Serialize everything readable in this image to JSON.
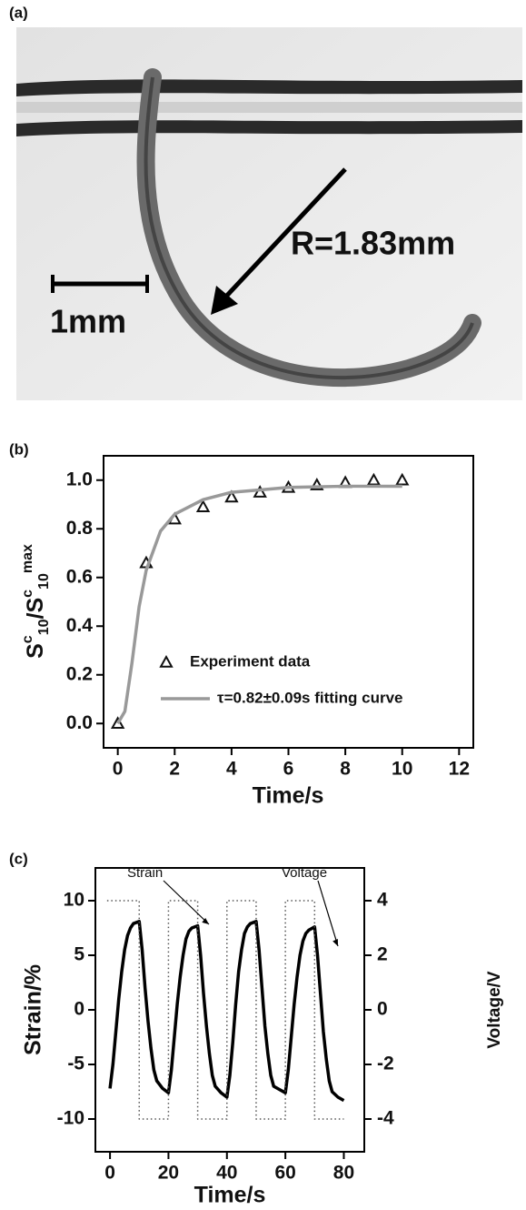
{
  "photo": {
    "label": "(a)",
    "radius_label": "R=1.83mm",
    "scale_label": "1mm"
  },
  "chart_data": [
    {
      "type": "scatter-line",
      "panel": "(b)",
      "ylabel": [
        "S",
        "c",
        "10",
        "/S",
        "c",
        "10",
        "max"
      ],
      "xlabel": "Time/s",
      "xlim": [
        -0.5,
        12.5
      ],
      "ylim": [
        -0.1,
        1.1
      ],
      "xticks": [
        0,
        2,
        4,
        6,
        8,
        10,
        12
      ],
      "yticks": [
        {
          "value": 0,
          "label": "0.0"
        },
        {
          "value": 0.2,
          "label": "0.2"
        },
        {
          "value": 0.4,
          "label": "0.4"
        },
        {
          "value": 0.6,
          "label": "0.6"
        },
        {
          "value": 0.8,
          "label": "0.8"
        },
        {
          "value": 1,
          "label": "1.0"
        }
      ],
      "legend": "lower right",
      "series": [
        {
          "name": "Experiment data",
          "kind": "scatter",
          "color": "#111111",
          "x": [
            0,
            1,
            2,
            3,
            4,
            5,
            6,
            7,
            8,
            9,
            10
          ],
          "values": [
            0,
            0.66,
            0.84,
            0.89,
            0.93,
            0.95,
            0.97,
            0.98,
            0.99,
            1.0,
            1.0
          ]
        },
        {
          "name": "τ=0.82±0.09s fitting curve",
          "kind": "line",
          "color": "#999999",
          "x": [
            0,
            0.25,
            0.5,
            0.75,
            1,
            1.5,
            2,
            3,
            4,
            5,
            6,
            8,
            10
          ],
          "values": [
            0,
            0.05,
            0.25,
            0.48,
            0.63,
            0.79,
            0.86,
            0.92,
            0.95,
            0.96,
            0.97,
            0.975,
            0.975
          ]
        }
      ]
    },
    {
      "type": "line",
      "panel": "(c)",
      "ylabel": "Strain/%",
      "y2label": "Voltage/V",
      "xlabel": "Time/s",
      "xlim": [
        -5,
        87
      ],
      "ylim": [
        -13,
        13
      ],
      "y2lim": [
        -5.2,
        5.2
      ],
      "xticks": [
        0,
        20,
        40,
        60,
        80
      ],
      "yticks": [
        10,
        5,
        0,
        -5,
        -10
      ],
      "y2ticks": [
        4,
        2,
        0,
        -2,
        -4
      ],
      "series": [
        {
          "name": "Strain",
          "kind": "line",
          "color": "#000000",
          "x": [
            0,
            1,
            2,
            3,
            4,
            5,
            6,
            7,
            8,
            10,
            11,
            12,
            13,
            14,
            15,
            16,
            18,
            20,
            21,
            22,
            23,
            24,
            25,
            26,
            27,
            28,
            30,
            31,
            32,
            33,
            34,
            35,
            36,
            38,
            40,
            41,
            42,
            43,
            44,
            45,
            46,
            47,
            48,
            50,
            51,
            52,
            53,
            54,
            55,
            56,
            58,
            60,
            61,
            62,
            63,
            64,
            65,
            66,
            67,
            68,
            70,
            71,
            72,
            73,
            74,
            75,
            76,
            78,
            80
          ],
          "values": [
            -7.2,
            -5,
            -2,
            1,
            3.5,
            5.5,
            6.8,
            7.5,
            7.9,
            8.1,
            5.5,
            2,
            -1,
            -3.5,
            -5.5,
            -6.5,
            -7.2,
            -7.6,
            -5.5,
            -2.5,
            0.5,
            3,
            5,
            6.5,
            7.2,
            7.5,
            7.7,
            5,
            1.5,
            -1.5,
            -4,
            -6,
            -7,
            -7.6,
            -8,
            -6,
            -3,
            0.5,
            3.5,
            5.5,
            7,
            7.6,
            7.9,
            8.1,
            5.5,
            2,
            -1.5,
            -4,
            -6,
            -7,
            -7.3,
            -7.6,
            -5.5,
            -2.5,
            0.5,
            3,
            5,
            6.3,
            7,
            7.3,
            7.6,
            5,
            1.5,
            -2,
            -4.5,
            -6.5,
            -7.5,
            -8,
            -8.3
          ]
        },
        {
          "name": "Voltage",
          "kind": "dotted",
          "axis": "y2",
          "color": "#555555",
          "x": [
            -1,
            10,
            10,
            20,
            20,
            30,
            30,
            40,
            40,
            50,
            50,
            60,
            60,
            70,
            70,
            80
          ],
          "values": [
            4,
            4,
            -4,
            -4,
            4,
            4,
            -4,
            -4,
            4,
            4,
            -4,
            -4,
            4,
            4,
            -4,
            -4
          ]
        }
      ]
    }
  ]
}
